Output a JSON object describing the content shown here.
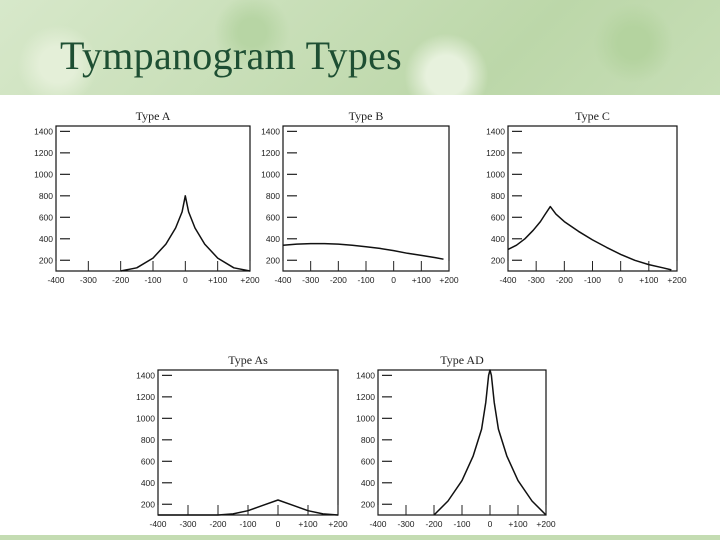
{
  "slide": {
    "title": "Tympanogram Types"
  },
  "chart_data": [
    {
      "type": "line",
      "title": "Type A",
      "xlim": [
        -400,
        200
      ],
      "ylim": [
        100,
        1450
      ],
      "xticks": [
        "-400",
        "-300",
        "-200",
        "-100",
        "0",
        "+100",
        "+200"
      ],
      "yticks": [
        "1400",
        "1200",
        "1000",
        "800",
        "600",
        "400",
        "200"
      ],
      "series": [
        {
          "x": [
            -200,
            -150,
            -100,
            -60,
            -30,
            -10,
            0,
            10,
            30,
            60,
            100,
            150,
            200
          ],
          "y": [
            100,
            130,
            220,
            350,
            500,
            650,
            800,
            650,
            500,
            350,
            220,
            130,
            100
          ]
        }
      ]
    },
    {
      "type": "line",
      "title": "Type B",
      "xlim": [
        -400,
        200
      ],
      "ylim": [
        100,
        1450
      ],
      "xticks": [
        "-400",
        "-300",
        "-200",
        "-100",
        "0",
        "+100",
        "+200"
      ],
      "yticks": [
        "1400",
        "1200",
        "1000",
        "800",
        "600",
        "400",
        "200"
      ],
      "series": [
        {
          "x": [
            -400,
            -350,
            -300,
            -250,
            -200,
            -150,
            -100,
            -50,
            0,
            50,
            100,
            150,
            180
          ],
          "y": [
            340,
            350,
            355,
            355,
            350,
            340,
            325,
            310,
            290,
            265,
            245,
            225,
            210
          ]
        }
      ]
    },
    {
      "type": "line",
      "title": "Type C",
      "xlim": [
        -400,
        200
      ],
      "ylim": [
        100,
        1450
      ],
      "xticks": [
        "-400",
        "-300",
        "-200",
        "-100",
        "0",
        "+100",
        "+200"
      ],
      "yticks": [
        "1400",
        "1200",
        "1000",
        "800",
        "600",
        "400",
        "200"
      ],
      "series": [
        {
          "x": [
            -400,
            -370,
            -340,
            -310,
            -285,
            -270,
            -250,
            -230,
            -200,
            -150,
            -100,
            -50,
            0,
            50,
            100,
            150,
            180
          ],
          "y": [
            300,
            340,
            400,
            480,
            560,
            620,
            700,
            630,
            560,
            470,
            390,
            320,
            255,
            200,
            160,
            130,
            110
          ]
        }
      ]
    },
    {
      "type": "line",
      "title": "Type As",
      "xlim": [
        -400,
        200
      ],
      "ylim": [
        100,
        1450
      ],
      "xticks": [
        "-400",
        "-300",
        "-200",
        "-100",
        "0",
        "+100",
        "+200"
      ],
      "yticks": [
        "1400",
        "1200",
        "1000",
        "800",
        "600",
        "400",
        "200"
      ],
      "series": [
        {
          "x": [
            -400,
            -300,
            -200,
            -150,
            -100,
            -50,
            0,
            50,
            100,
            150,
            200
          ],
          "y": [
            100,
            100,
            100,
            110,
            140,
            190,
            240,
            190,
            140,
            110,
            100
          ]
        }
      ]
    },
    {
      "type": "line",
      "title": "Type AD",
      "xlim": [
        -400,
        200
      ],
      "ylim": [
        100,
        1450
      ],
      "xticks": [
        "-400",
        "-300",
        "-200",
        "-100",
        "0",
        "+100",
        "+200"
      ],
      "yticks": [
        "1400",
        "1200",
        "1000",
        "800",
        "600",
        "400",
        "200"
      ],
      "series": [
        {
          "x": [
            -200,
            -150,
            -100,
            -60,
            -30,
            -15,
            -5,
            0,
            5,
            15,
            30,
            60,
            100,
            150,
            200
          ],
          "y": [
            100,
            230,
            420,
            650,
            900,
            1150,
            1400,
            1450,
            1400,
            1150,
            900,
            650,
            420,
            230,
            100
          ]
        }
      ]
    }
  ]
}
